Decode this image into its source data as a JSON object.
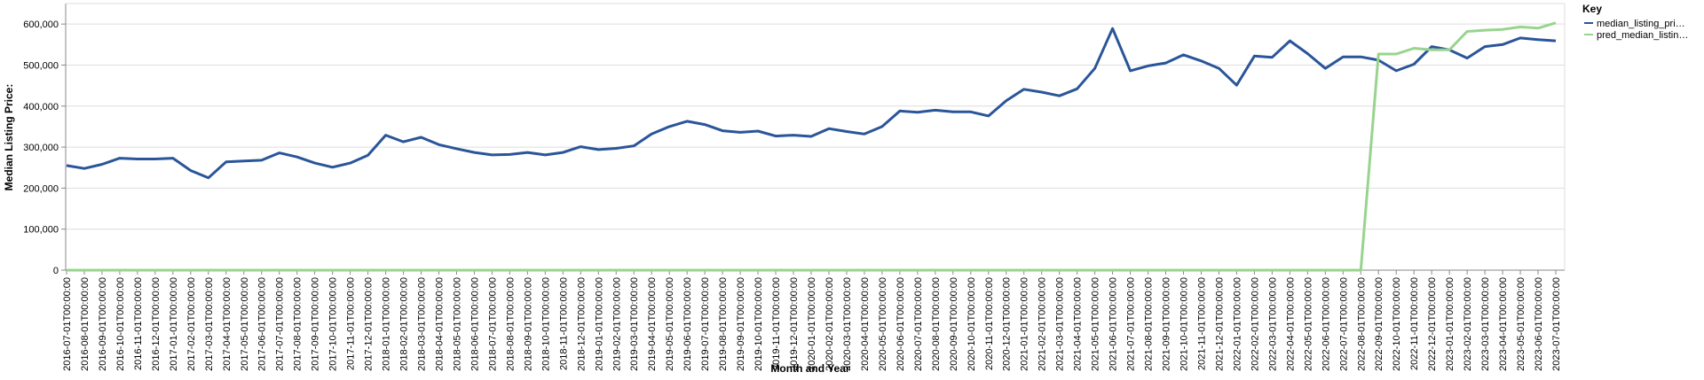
{
  "chart_data": {
    "type": "line",
    "x_label": "Month and Year",
    "y_label": "Median Listing Price:",
    "legend_title": "Key",
    "legend_position": "right",
    "grid": true,
    "categories": [
      "2016-07-01T00:00:00",
      "2016-08-01T00:00:00",
      "2016-09-01T00:00:00",
      "2016-10-01T00:00:00",
      "2016-11-01T00:00:00",
      "2016-12-01T00:00:00",
      "2017-01-01T00:00:00",
      "2017-02-01T00:00:00",
      "2017-03-01T00:00:00",
      "2017-04-01T00:00:00",
      "2017-05-01T00:00:00",
      "2017-06-01T00:00:00",
      "2017-07-01T00:00:00",
      "2017-08-01T00:00:00",
      "2017-09-01T00:00:00",
      "2017-10-01T00:00:00",
      "2017-11-01T00:00:00",
      "2017-12-01T00:00:00",
      "2018-01-01T00:00:00",
      "2018-02-01T00:00:00",
      "2018-03-01T00:00:00",
      "2018-04-01T00:00:00",
      "2018-05-01T00:00:00",
      "2018-06-01T00:00:00",
      "2018-07-01T00:00:00",
      "2018-08-01T00:00:00",
      "2018-09-01T00:00:00",
      "2018-10-01T00:00:00",
      "2018-11-01T00:00:00",
      "2018-12-01T00:00:00",
      "2019-01-01T00:00:00",
      "2019-02-01T00:00:00",
      "2019-03-01T00:00:00",
      "2019-04-01T00:00:00",
      "2019-05-01T00:00:00",
      "2019-06-01T00:00:00",
      "2019-07-01T00:00:00",
      "2019-08-01T00:00:00",
      "2019-09-01T00:00:00",
      "2019-10-01T00:00:00",
      "2019-11-01T00:00:00",
      "2019-12-01T00:00:00",
      "2020-01-01T00:00:00",
      "2020-02-01T00:00:00",
      "2020-03-01T00:00:00",
      "2020-04-01T00:00:00",
      "2020-05-01T00:00:00",
      "2020-06-01T00:00:00",
      "2020-07-01T00:00:00",
      "2020-08-01T00:00:00",
      "2020-09-01T00:00:00",
      "2020-10-01T00:00:00",
      "2020-11-01T00:00:00",
      "2020-12-01T00:00:00",
      "2021-01-01T00:00:00",
      "2021-02-01T00:00:00",
      "2021-03-01T00:00:00",
      "2021-04-01T00:00:00",
      "2021-05-01T00:00:00",
      "2021-06-01T00:00:00",
      "2021-07-01T00:00:00",
      "2021-08-01T00:00:00",
      "2021-09-01T00:00:00",
      "2021-10-01T00:00:00",
      "2021-11-01T00:00:00",
      "2021-12-01T00:00:00",
      "2022-01-01T00:00:00",
      "2022-02-01T00:00:00",
      "2022-03-01T00:00:00",
      "2022-04-01T00:00:00",
      "2022-05-01T00:00:00",
      "2022-06-01T00:00:00",
      "2022-07-01T00:00:00",
      "2022-08-01T00:00:00",
      "2022-09-01T00:00:00",
      "2022-10-01T00:00:00",
      "2022-11-01T00:00:00",
      "2022-12-01T00:00:00",
      "2023-01-01T00:00:00",
      "2023-02-01T00:00:00",
      "2023-03-01T00:00:00",
      "2023-04-01T00:00:00",
      "2023-05-01T00:00:00",
      "2023-06-01T00:00:00",
      "2023-07-01T00:00:00"
    ],
    "series": [
      {
        "name": "median_listing_pri…",
        "color": "#2a5599",
        "values": [
          255000,
          248000,
          258000,
          273000,
          271000,
          271000,
          273000,
          243000,
          225000,
          264000,
          266000,
          268000,
          286000,
          276000,
          261000,
          251000,
          261000,
          280000,
          329000,
          313000,
          324000,
          306000,
          296000,
          287000,
          281000,
          282000,
          287000,
          281000,
          287000,
          301000,
          294000,
          297000,
          303000,
          332000,
          350000,
          363000,
          355000,
          340000,
          336000,
          339000,
          327000,
          329000,
          326000,
          345000,
          338000,
          332000,
          350000,
          388000,
          385000,
          390000,
          386000,
          386000,
          376000,
          413000,
          441000,
          434000,
          425000,
          442000,
          492000,
          589000,
          486000,
          498000,
          505000,
          525000,
          510000,
          492000,
          451000,
          522000,
          519000,
          559000,
          528000,
          492000,
          520000,
          520000,
          512000,
          486000,
          502000,
          545000,
          537000,
          517000,
          545000,
          550000,
          566000,
          562000,
          559000
        ]
      },
      {
        "name": "pred_median_listin…",
        "color": "#98d48e",
        "values": [
          0,
          0,
          0,
          0,
          0,
          0,
          0,
          0,
          0,
          0,
          0,
          0,
          0,
          0,
          0,
          0,
          0,
          0,
          0,
          0,
          0,
          0,
          0,
          0,
          0,
          0,
          0,
          0,
          0,
          0,
          0,
          0,
          0,
          0,
          0,
          0,
          0,
          0,
          0,
          0,
          0,
          0,
          0,
          0,
          0,
          0,
          0,
          0,
          0,
          0,
          0,
          0,
          0,
          0,
          0,
          0,
          0,
          0,
          0,
          0,
          0,
          0,
          0,
          0,
          0,
          0,
          0,
          0,
          0,
          0,
          0,
          0,
          0,
          0,
          527000,
          527000,
          541000,
          537000,
          537000,
          582000,
          585000,
          587000,
          593000,
          590000,
          603000
        ]
      }
    ],
    "ylim": [
      0,
      650000
    ],
    "yticks": [
      0,
      {
        "value": 100000,
        "label": "100,000"
      },
      {
        "value": 200000,
        "label": "200,000"
      },
      {
        "value": 300000,
        "label": "300,000"
      },
      {
        "value": 400000,
        "label": "400,000"
      },
      {
        "value": 500000,
        "label": "500,000"
      },
      {
        "value": 600000,
        "label": "600,000"
      }
    ]
  }
}
